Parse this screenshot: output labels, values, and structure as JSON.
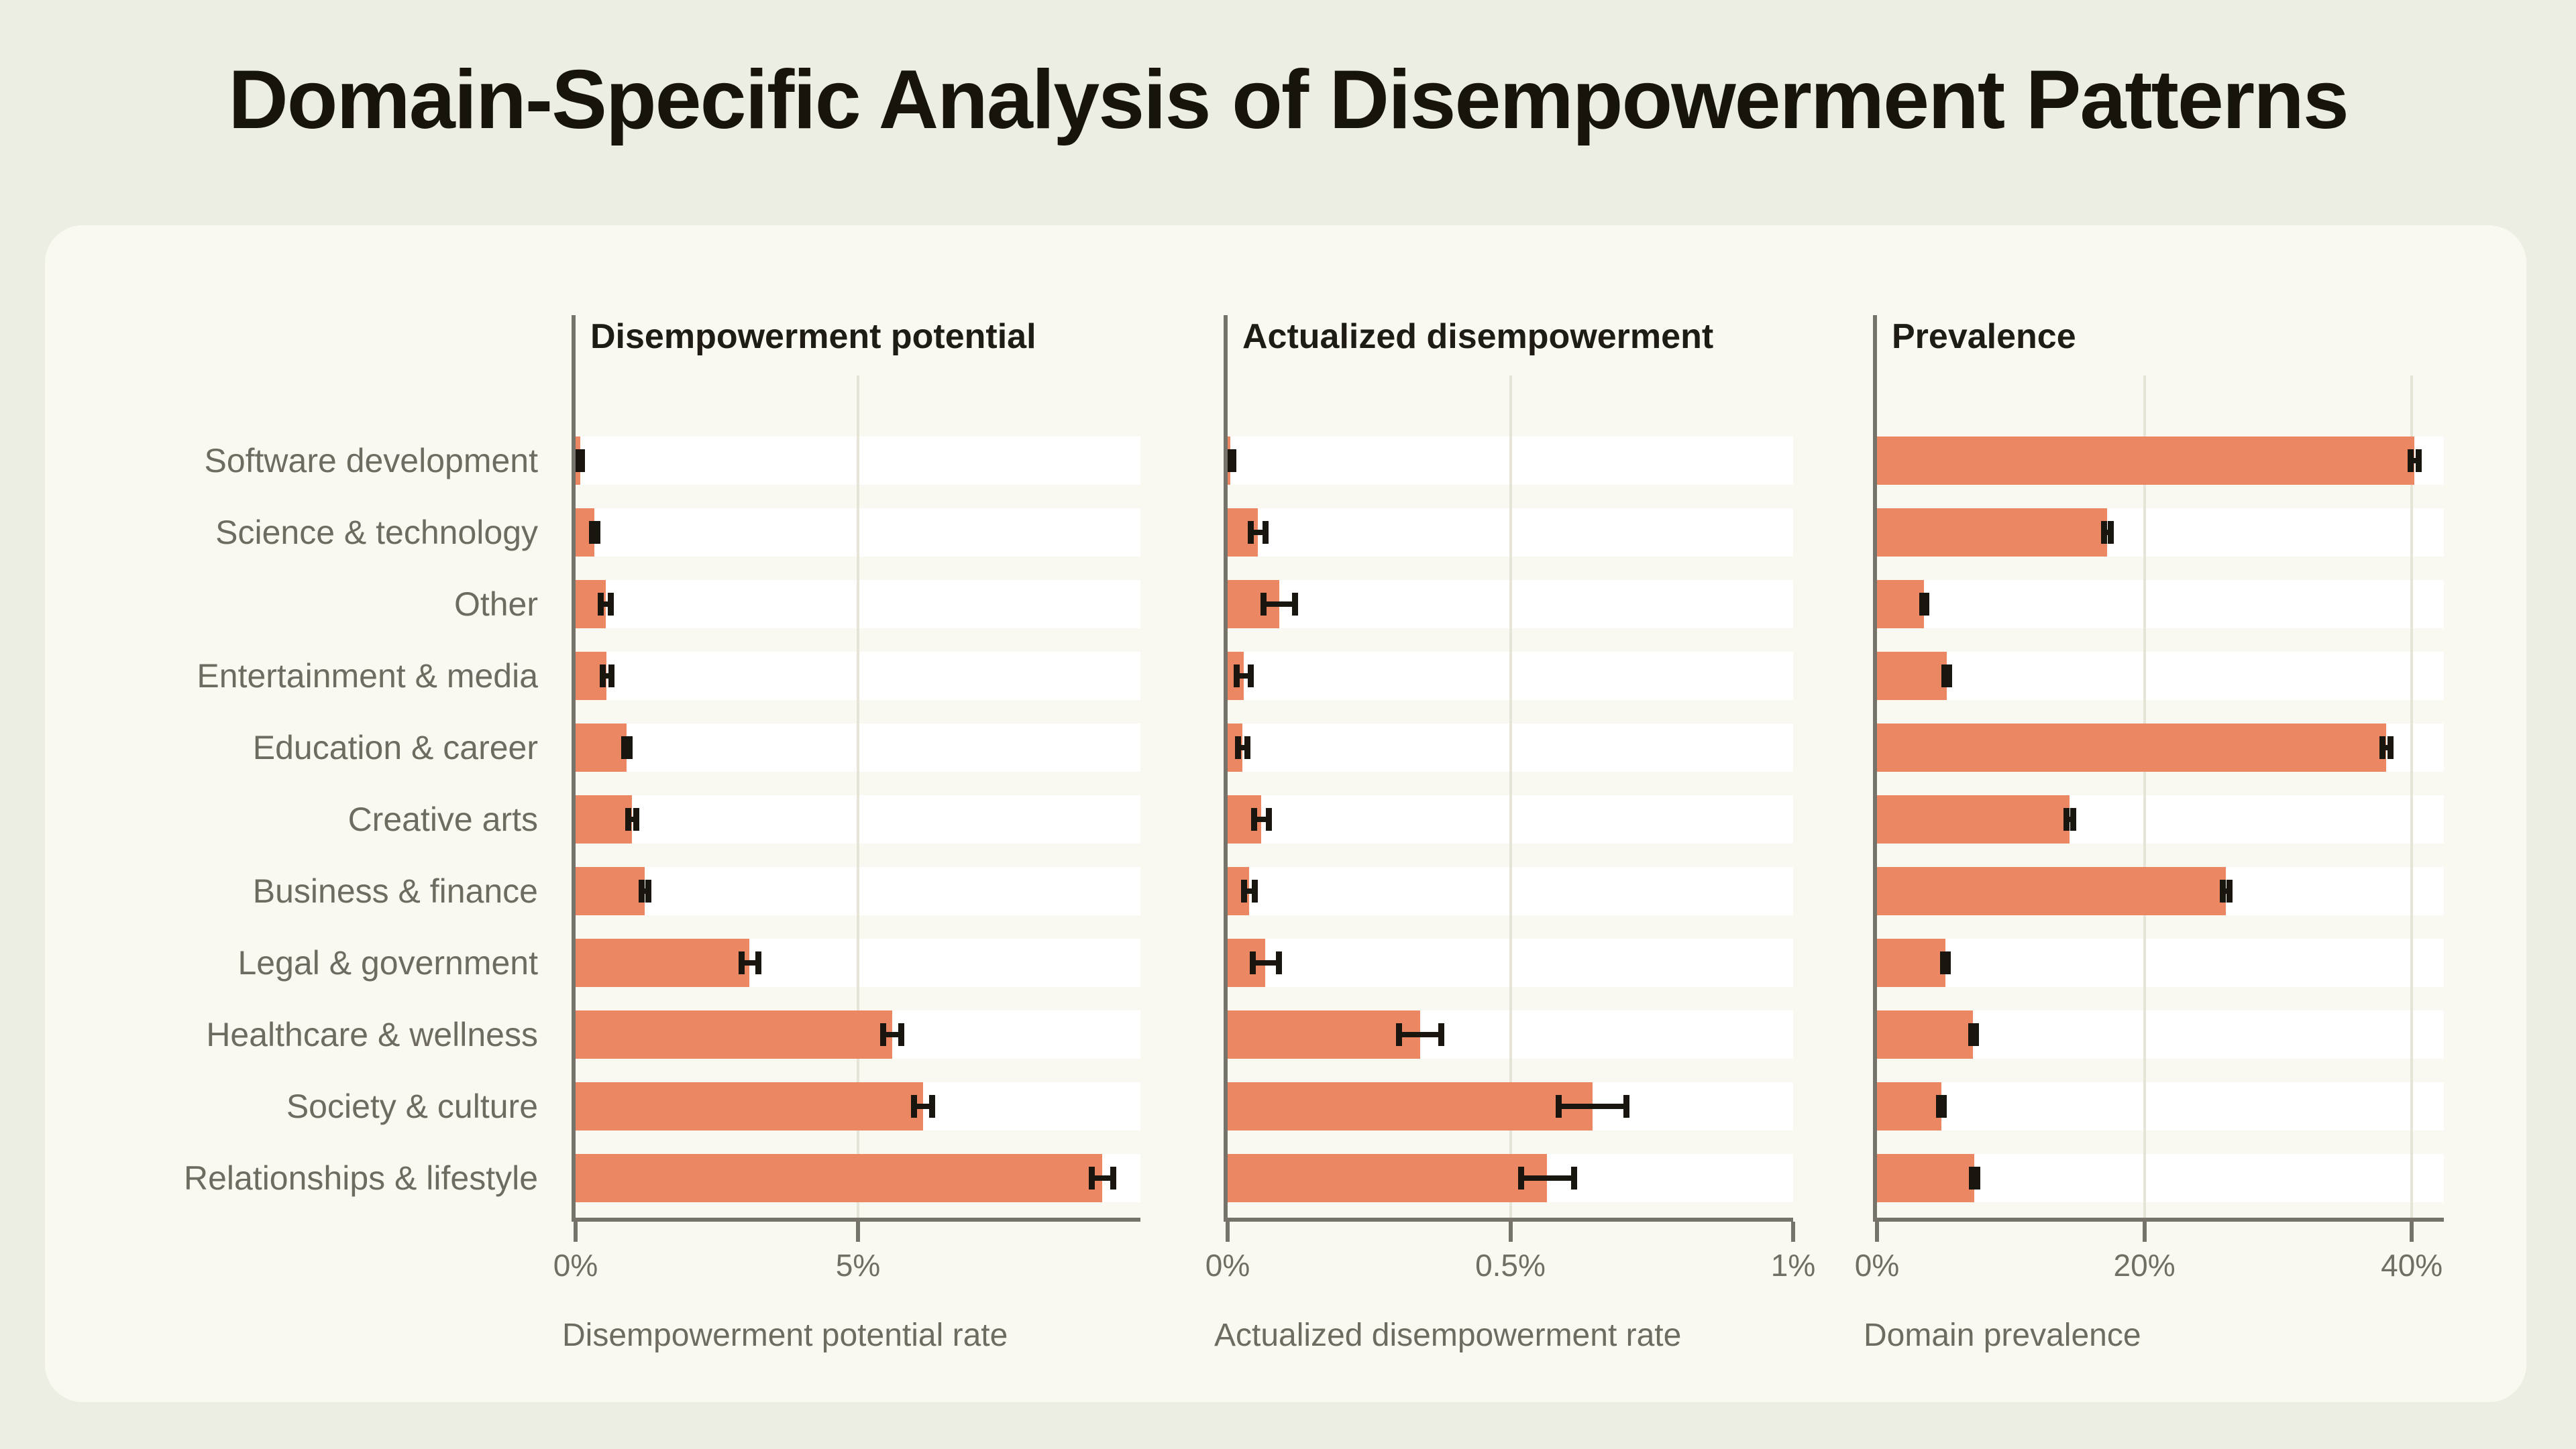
{
  "page_title": "Domain-Specific Analysis of Disempowerment Patterns",
  "colors": {
    "page_background": "#edeee3",
    "card_background": "#faf9f1",
    "row_band": "#ffffff",
    "bar": "#ec8763",
    "error_bar": "#18160f",
    "axis": "#76736a",
    "gridline": "#e6e4d6",
    "title_text": "#17140c",
    "panel_title_text": "#1e1c15",
    "label_text": "#6e6b61"
  },
  "chart_data": {
    "type": "bar",
    "orientation": "horizontal",
    "grid": true,
    "legend": false,
    "title": "Domain-Specific Analysis of Disempowerment Patterns",
    "categories": [
      "Software development",
      "Science & technology",
      "Other",
      "Entertainment & media",
      "Education & career",
      "Creative arts",
      "Business & finance",
      "Legal & government",
      "Healthcare & wellness",
      "Society & culture",
      "Relationships & lifestyle"
    ],
    "panels": [
      {
        "title": "Disempowerment potential",
        "xlabel": "Disempowerment potential rate",
        "unit": "%",
        "xlim": [
          0,
          10
        ],
        "ticks": [
          {
            "value": 0,
            "label": "0%"
          },
          {
            "value": 5,
            "label": "5%"
          }
        ],
        "gridlines": [
          5
        ],
        "values": [
          0.08,
          0.33,
          0.53,
          0.55,
          0.9,
          1.0,
          1.22,
          3.08,
          5.6,
          6.15,
          9.32
        ],
        "errors": [
          0.03,
          0.05,
          0.09,
          0.08,
          0.05,
          0.07,
          0.06,
          0.15,
          0.16,
          0.16,
          0.19
        ]
      },
      {
        "title": "Actualized disempowerment",
        "xlabel": "Actualized disempowerment rate",
        "unit": "%",
        "xlim": [
          0,
          1
        ],
        "ticks": [
          {
            "value": 0,
            "label": "0%"
          },
          {
            "value": 0.5,
            "label": "0.5%"
          },
          {
            "value": 1,
            "label": "1%"
          }
        ],
        "gridlines": [
          0.5
        ],
        "values": [
          0.005,
          0.053,
          0.091,
          0.028,
          0.026,
          0.059,
          0.038,
          0.067,
          0.34,
          0.645,
          0.565
        ],
        "errors": [
          0.005,
          0.013,
          0.028,
          0.012,
          0.008,
          0.013,
          0.009,
          0.023,
          0.037,
          0.06,
          0.047
        ]
      },
      {
        "title": "Prevalence",
        "xlabel": "Domain prevalence",
        "unit": "%",
        "xlim": [
          0,
          42.4
        ],
        "ticks": [
          {
            "value": 0,
            "label": "0%"
          },
          {
            "value": 20,
            "label": "20%"
          },
          {
            "value": 40,
            "label": "40%"
          }
        ],
        "gridlines": [
          20,
          40
        ],
        "values": [
          40.2,
          17.2,
          3.5,
          5.2,
          38.1,
          14.4,
          26.1,
          5.1,
          7.2,
          4.8,
          7.3
        ],
        "errors": [
          0.3,
          0.25,
          0.15,
          0.18,
          0.3,
          0.25,
          0.25,
          0.18,
          0.2,
          0.18,
          0.2
        ]
      }
    ]
  }
}
